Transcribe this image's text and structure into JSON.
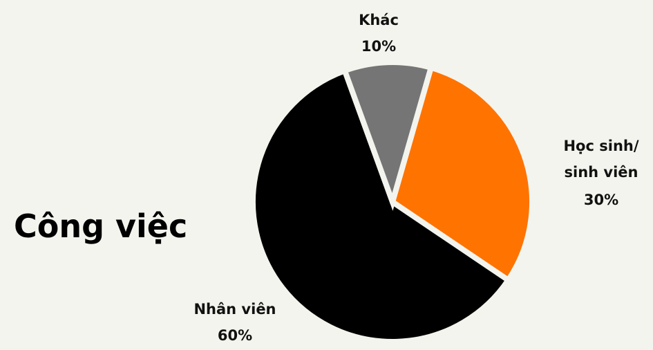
{
  "chart_data": {
    "type": "pie",
    "title": "Công việc",
    "categories": [
      "Học sinh/ sinh viên",
      "Nhân viên",
      "Khác"
    ],
    "values": [
      30,
      60,
      10
    ],
    "value_labels": [
      "30%",
      "60%",
      "10%"
    ],
    "colors": [
      "#ff7300",
      "#000000",
      "#757575"
    ]
  }
}
